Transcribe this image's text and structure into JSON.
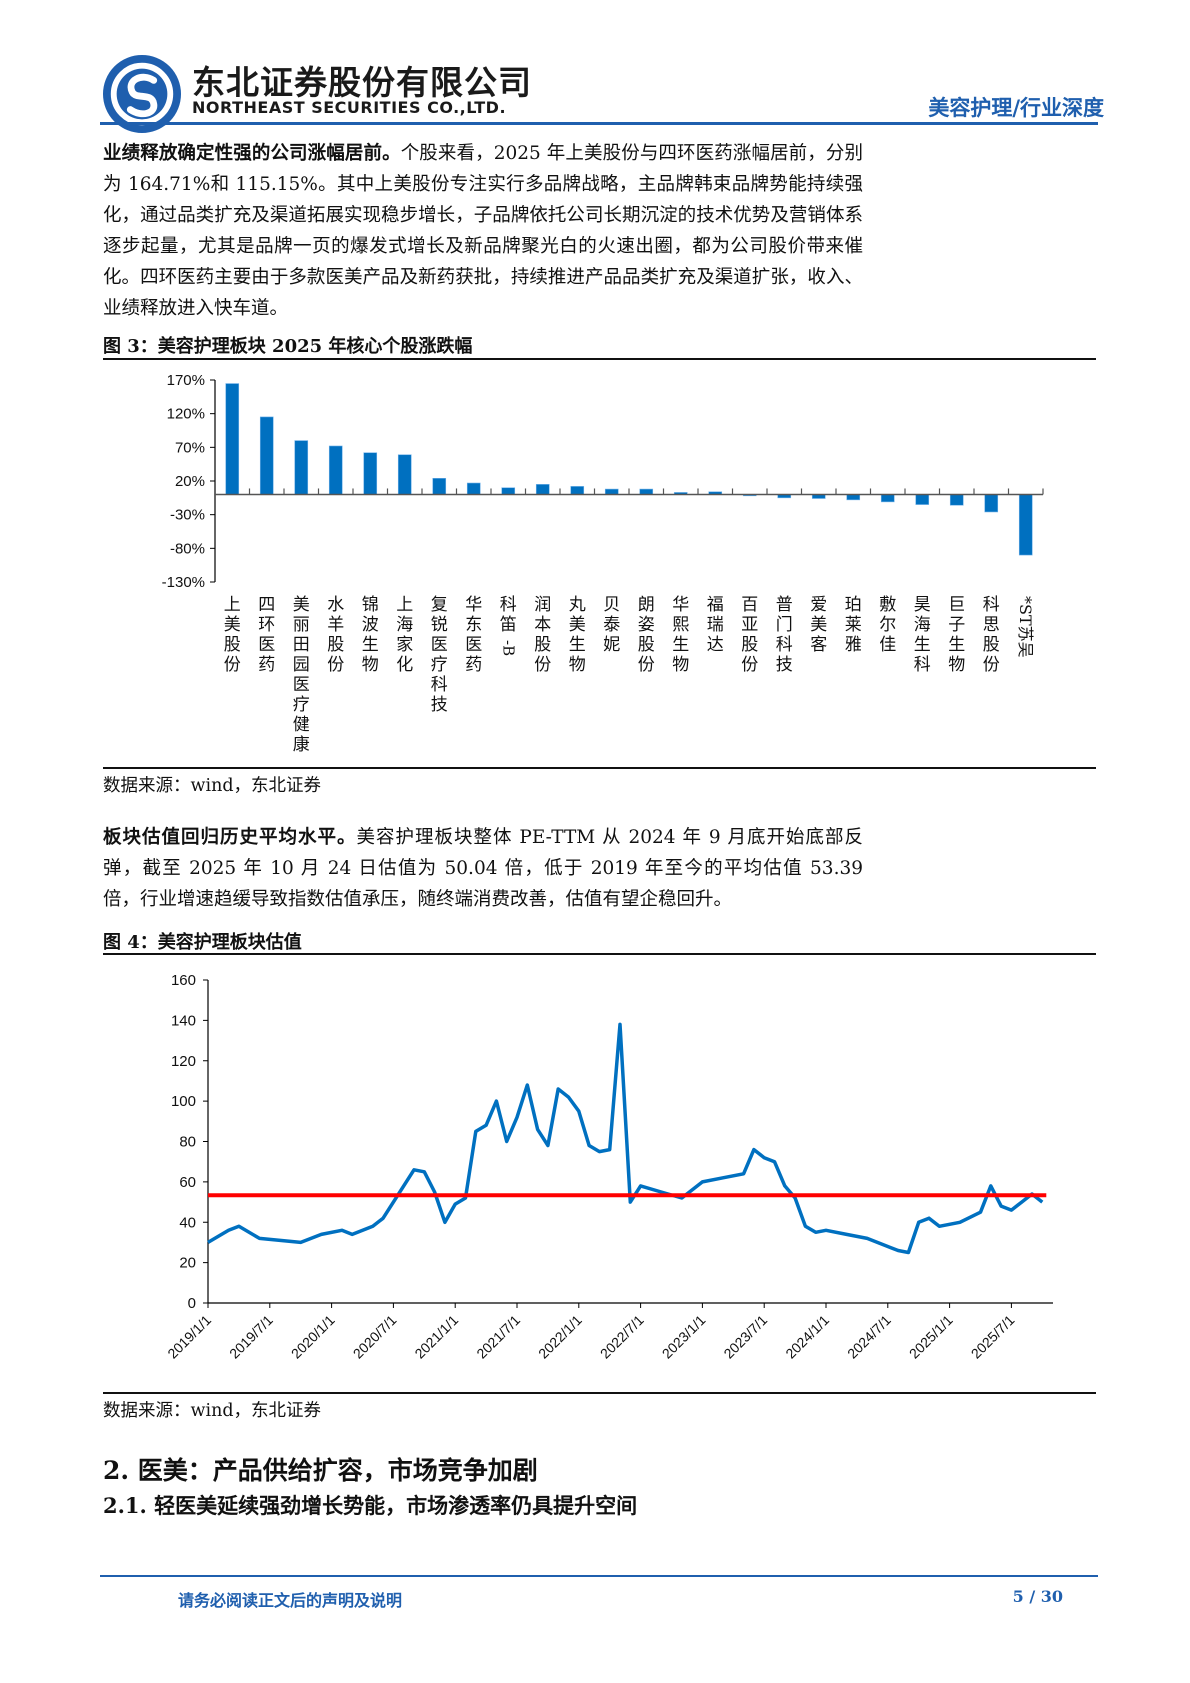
{
  "header": {
    "company_cn": "东北证券股份有限公司",
    "company_en": "NORTHEAST SECURITIES CO.,LTD.",
    "report_tag": "美容护理/行业深度",
    "logo_icon": "northeast-securities-logo",
    "brand_color": "#1f5fae"
  },
  "paragraph1": {
    "bold": "业绩释放确定性强的公司涨幅居前。",
    "text": "个股来看，2025 年上美股份与四环医药涨幅居前，分别为 164.71%和 115.15%。其中上美股份专注实行多品牌战略，主品牌韩束品牌势能持续强化，通过品类扩充及渠道拓展实现稳步增长，子品牌依托公司长期沉淀的技术优势及营销体系逐步起量，尤其是品牌一页的爆发式增长及新品牌聚光白的火速出圈，都为公司股价带来催化。四环医药主要由于多款医美产品及新药获批，持续推进产品品类扩充及渠道扩张，收入、业绩释放进入快车道。"
  },
  "figure3": {
    "title": "图 3：美容护理板块 2025 年核心个股涨跌幅",
    "source": "数据来源：wind，东北证券"
  },
  "paragraph2": {
    "bold": "板块估值回归历史平均水平。",
    "text": "美容护理板块整体 PE-TTM 从 2024 年 9 月底开始底部反弹，截至 2025 年 10 月 24 日估值为 50.04 倍，低于 2019 年至今的平均估值 53.39 倍，行业增速趋缓导致指数估值承压，随终端消费改善，估值有望企稳回升。"
  },
  "figure4": {
    "title": "图 4：美容护理板块估值",
    "source": "数据来源：wind，东北证券"
  },
  "section2": {
    "heading": "2.  医美：产品供给扩容，市场竞争加剧",
    "subheading": "2.1.   轻医美延续强劲增长势能，市场渗透率仍具提升空间"
  },
  "footer": {
    "note": "请务必阅读正文后的声明及说明",
    "page": "5 / 30"
  },
  "chart_data": [
    {
      "type": "bar",
      "title": "美容护理板块 2025 年核心个股涨跌幅",
      "xlabel": "",
      "ylabel": "",
      "ylim": [
        -130,
        170
      ],
      "yticks": [
        "170%",
        "120%",
        "70%",
        "20%",
        "-30%",
        "-80%",
        "-130%"
      ],
      "yticks_values": [
        170,
        120,
        70,
        20,
        -30,
        -80,
        -130
      ],
      "grid": false,
      "legend": null,
      "bar_color": "#0070c0",
      "categories": [
        "上美股份",
        "四环医药",
        "美丽田园医疗健康",
        "水羊股份",
        "锦波生物",
        "上海家化",
        "复锐医疗科技",
        "华东医药",
        "科笛-B",
        "润本股份",
        "丸美生物",
        "贝泰妮",
        "朗姿股份",
        "华熙生物",
        "福瑞达",
        "百亚股份",
        "普门科技",
        "爱美客",
        "珀莱雅",
        "敷尔佳",
        "昊海生科",
        "巨子生物",
        "科思股份",
        "*ST苏吴"
      ],
      "values": [
        164.71,
        115.15,
        80,
        72,
        62,
        59,
        24,
        17,
        10,
        15,
        12,
        8,
        8,
        3,
        4,
        -2,
        -5,
        -6,
        -8,
        -11,
        -15,
        -16,
        -26,
        -90
      ]
    },
    {
      "type": "line",
      "title": "美容护理板块估值",
      "xlabel": "",
      "ylabel": "",
      "ylim": [
        0,
        160
      ],
      "yticks": [
        0,
        20,
        40,
        60,
        80,
        100,
        120,
        140,
        160
      ],
      "xticks": [
        "2019/1/1",
        "2019/7/1",
        "2020/1/1",
        "2020/7/1",
        "2021/1/1",
        "2021/7/1",
        "2022/1/1",
        "2022/7/1",
        "2023/1/1",
        "2023/7/1",
        "2024/1/1",
        "2024/7/1",
        "2025/1/1",
        "2025/7/1"
      ],
      "grid": false,
      "series": [
        {
          "name": "PE-TTM",
          "color": "#0070c0",
          "x": [
            "2019/1",
            "2019/3",
            "2019/4",
            "2019/6",
            "2019/8",
            "2019/10",
            "2019/12",
            "2020/2",
            "2020/3",
            "2020/5",
            "2020/6",
            "2020/7",
            "2020/8",
            "2020/9",
            "2020/10",
            "2020/11",
            "2020/12",
            "2021/1",
            "2021/2",
            "2021/3",
            "2021/4",
            "2021/5",
            "2021/6",
            "2021/7",
            "2021/8",
            "2021/9",
            "2021/10",
            "2021/11",
            "2021/12",
            "2022/1",
            "2022/2",
            "2022/3",
            "2022/4",
            "2022/5",
            "2022/6",
            "2022/7",
            "2022/9",
            "2022/11",
            "2023/1",
            "2023/3",
            "2023/5",
            "2023/6",
            "2023/7",
            "2023/8",
            "2023/9",
            "2023/10",
            "2023/11",
            "2023/12",
            "2024/1",
            "2024/3",
            "2024/5",
            "2024/7",
            "2024/8",
            "2024/9",
            "2024/10",
            "2024/11",
            "2024/12",
            "2025/2",
            "2025/4",
            "2025/5",
            "2025/6",
            "2025/7",
            "2025/8",
            "2025/9",
            "2025/10"
          ],
          "values": [
            30,
            36,
            38,
            32,
            31,
            30,
            34,
            36,
            34,
            38,
            42,
            50,
            58,
            66,
            65,
            55,
            40,
            49,
            52,
            85,
            88,
            100,
            80,
            92,
            108,
            86,
            78,
            106,
            102,
            95,
            78,
            75,
            76,
            138,
            50,
            58,
            55,
            52,
            60,
            62,
            64,
            76,
            72,
            70,
            58,
            52,
            38,
            35,
            36,
            34,
            32,
            28,
            26,
            25,
            40,
            42,
            38,
            40,
            45,
            58,
            48,
            46,
            50,
            54,
            50
          ]
        },
        {
          "name": "2019年至今平均估值",
          "color": "#ff0000",
          "values_constant": 53.39
        }
      ],
      "annotations": {
        "latest_value": 50.04,
        "average": 53.39
      }
    }
  ]
}
